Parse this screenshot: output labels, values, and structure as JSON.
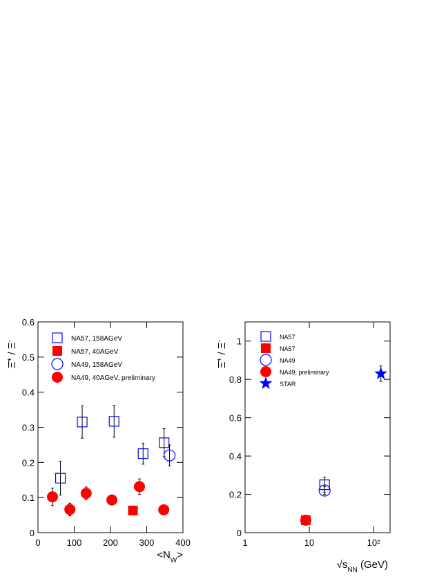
{
  "chart_data": [
    {
      "type": "scatter",
      "x_label": [
        "<N",
        "W",
        ">"
      ],
      "y_label": [
        "Ξ̄",
        "+",
        " / Ξ",
        "-"
      ],
      "xlim": [
        0,
        400
      ],
      "xticks": [
        0,
        100,
        200,
        300,
        400
      ],
      "ylim": [
        0,
        0.6
      ],
      "yticks": [
        0,
        0.1,
        0.2,
        0.3,
        0.4,
        0.5,
        0.6
      ],
      "series": [
        {
          "name": "NA57, 158AGeV",
          "color": "#0000ff",
          "marker": "open-square",
          "x": [
            62,
            122,
            210,
            290,
            348
          ],
          "values": [
            0.155,
            0.315,
            0.317,
            0.225,
            0.256
          ],
          "errors": [
            0.048,
            0.046,
            0.045,
            0.03,
            0.04
          ]
        },
        {
          "name": "NA57,  40AGeV",
          "color": "#ff0000",
          "marker": "filled-square",
          "x": [
            262
          ],
          "values": [
            0.063
          ],
          "errors": [
            0.01
          ]
        },
        {
          "name": "NA49, 158AGeV",
          "color": "#0000ff",
          "marker": "open-circle",
          "x": [
            363
          ],
          "values": [
            0.22
          ],
          "errors": [
            0.03
          ]
        },
        {
          "name": "NA49,  40AGeV, preliminary",
          "color": "#ff0000",
          "marker": "filled-circle",
          "x": [
            40,
            88,
            133,
            204,
            280,
            347
          ],
          "values": [
            0.102,
            0.066,
            0.112,
            0.093,
            0.131,
            0.065
          ],
          "errors": [
            0.025,
            0.018,
            0.018,
            0.012,
            0.022,
            null
          ]
        }
      ]
    },
    {
      "type": "scatter",
      "x_label": [
        "√s",
        "NN",
        " (GeV)"
      ],
      "y_label": [
        "Ξ̄",
        "+",
        " / Ξ",
        "-"
      ],
      "xscale": "log",
      "xlim": [
        1,
        181
      ],
      "xticks": [
        1,
        10,
        {
          "value": 100,
          "label": "10²"
        }
      ],
      "ylim": [
        0,
        1.1
      ],
      "yticks": [
        0,
        0.2,
        0.4,
        0.6,
        0.8,
        1
      ],
      "series": [
        {
          "name": "NA57",
          "color": "#0000ff",
          "marker": "open-square",
          "x": [
            17.3
          ],
          "values": [
            0.25
          ],
          "errors": [
            0.04
          ]
        },
        {
          "name": "NA57",
          "color": "#ff0000",
          "marker": "filled-square",
          "x": [
            8.8
          ],
          "values": [
            0.065
          ],
          "errors": [
            null
          ]
        },
        {
          "name": "NA49",
          "color": "#0000ff",
          "marker": "open-circle",
          "x": [
            17.3
          ],
          "values": [
            0.22
          ],
          "errors": [
            0.02
          ]
        },
        {
          "name": "NA49, preliminary",
          "color": "#ff0000",
          "marker": "filled-circle",
          "x": [
            8.8
          ],
          "values": [
            0.065
          ],
          "errors": [
            null
          ]
        },
        {
          "name": "STAR",
          "color": "#0000ff",
          "marker": "star",
          "x": [
            130
          ],
          "values": [
            0.83
          ],
          "errors": [
            0.04
          ]
        }
      ]
    }
  ]
}
